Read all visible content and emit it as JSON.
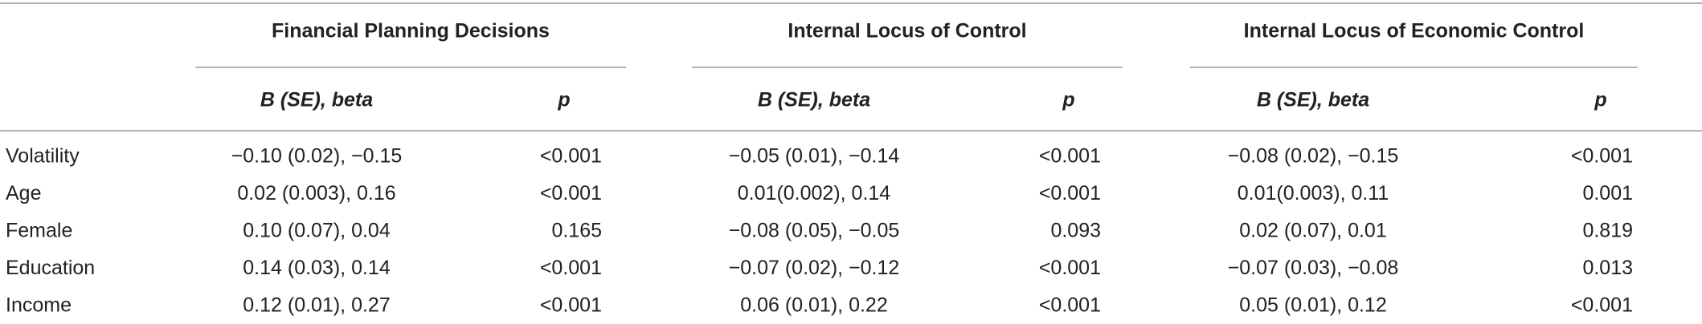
{
  "table": {
    "groups": [
      "Financial Planning Decisions",
      "Internal Locus of Control",
      "Internal Locus of Economic Control"
    ],
    "subheaders": [
      "B (SE), beta",
      "p",
      "B (SE), beta",
      "p",
      "B (SE), beta",
      "p"
    ],
    "rows": [
      {
        "label": "Volatility",
        "cells": [
          "−0.10 (0.02), −0.15",
          "<0.001",
          "−0.05 (0.01), −0.14",
          "<0.001",
          "−0.08 (0.02), −0.15",
          "<0.001"
        ]
      },
      {
        "label": "Age",
        "cells": [
          "0.02 (0.003), 0.16",
          "<0.001",
          "0.01(0.002), 0.14",
          "<0.001",
          "0.01(0.003), 0.11",
          "0.001"
        ]
      },
      {
        "label": "Female",
        "cells": [
          "0.10 (0.07), 0.04",
          "0.165",
          "−0.08 (0.05), −0.05",
          "0.093",
          "0.02 (0.07), 0.01",
          "0.819"
        ]
      },
      {
        "label": "Education",
        "cells": [
          "0.14 (0.03), 0.14",
          "<0.001",
          "−0.07 (0.02), −0.12",
          "<0.001",
          "−0.07 (0.03), −0.08",
          "0.013"
        ]
      },
      {
        "label": "Income",
        "cells": [
          "0.12 (0.01), 0.27",
          "<0.001",
          "0.06 (0.01), 0.22",
          "<0.001",
          "0.05 (0.01), 0.12",
          "<0.001"
        ]
      }
    ]
  }
}
